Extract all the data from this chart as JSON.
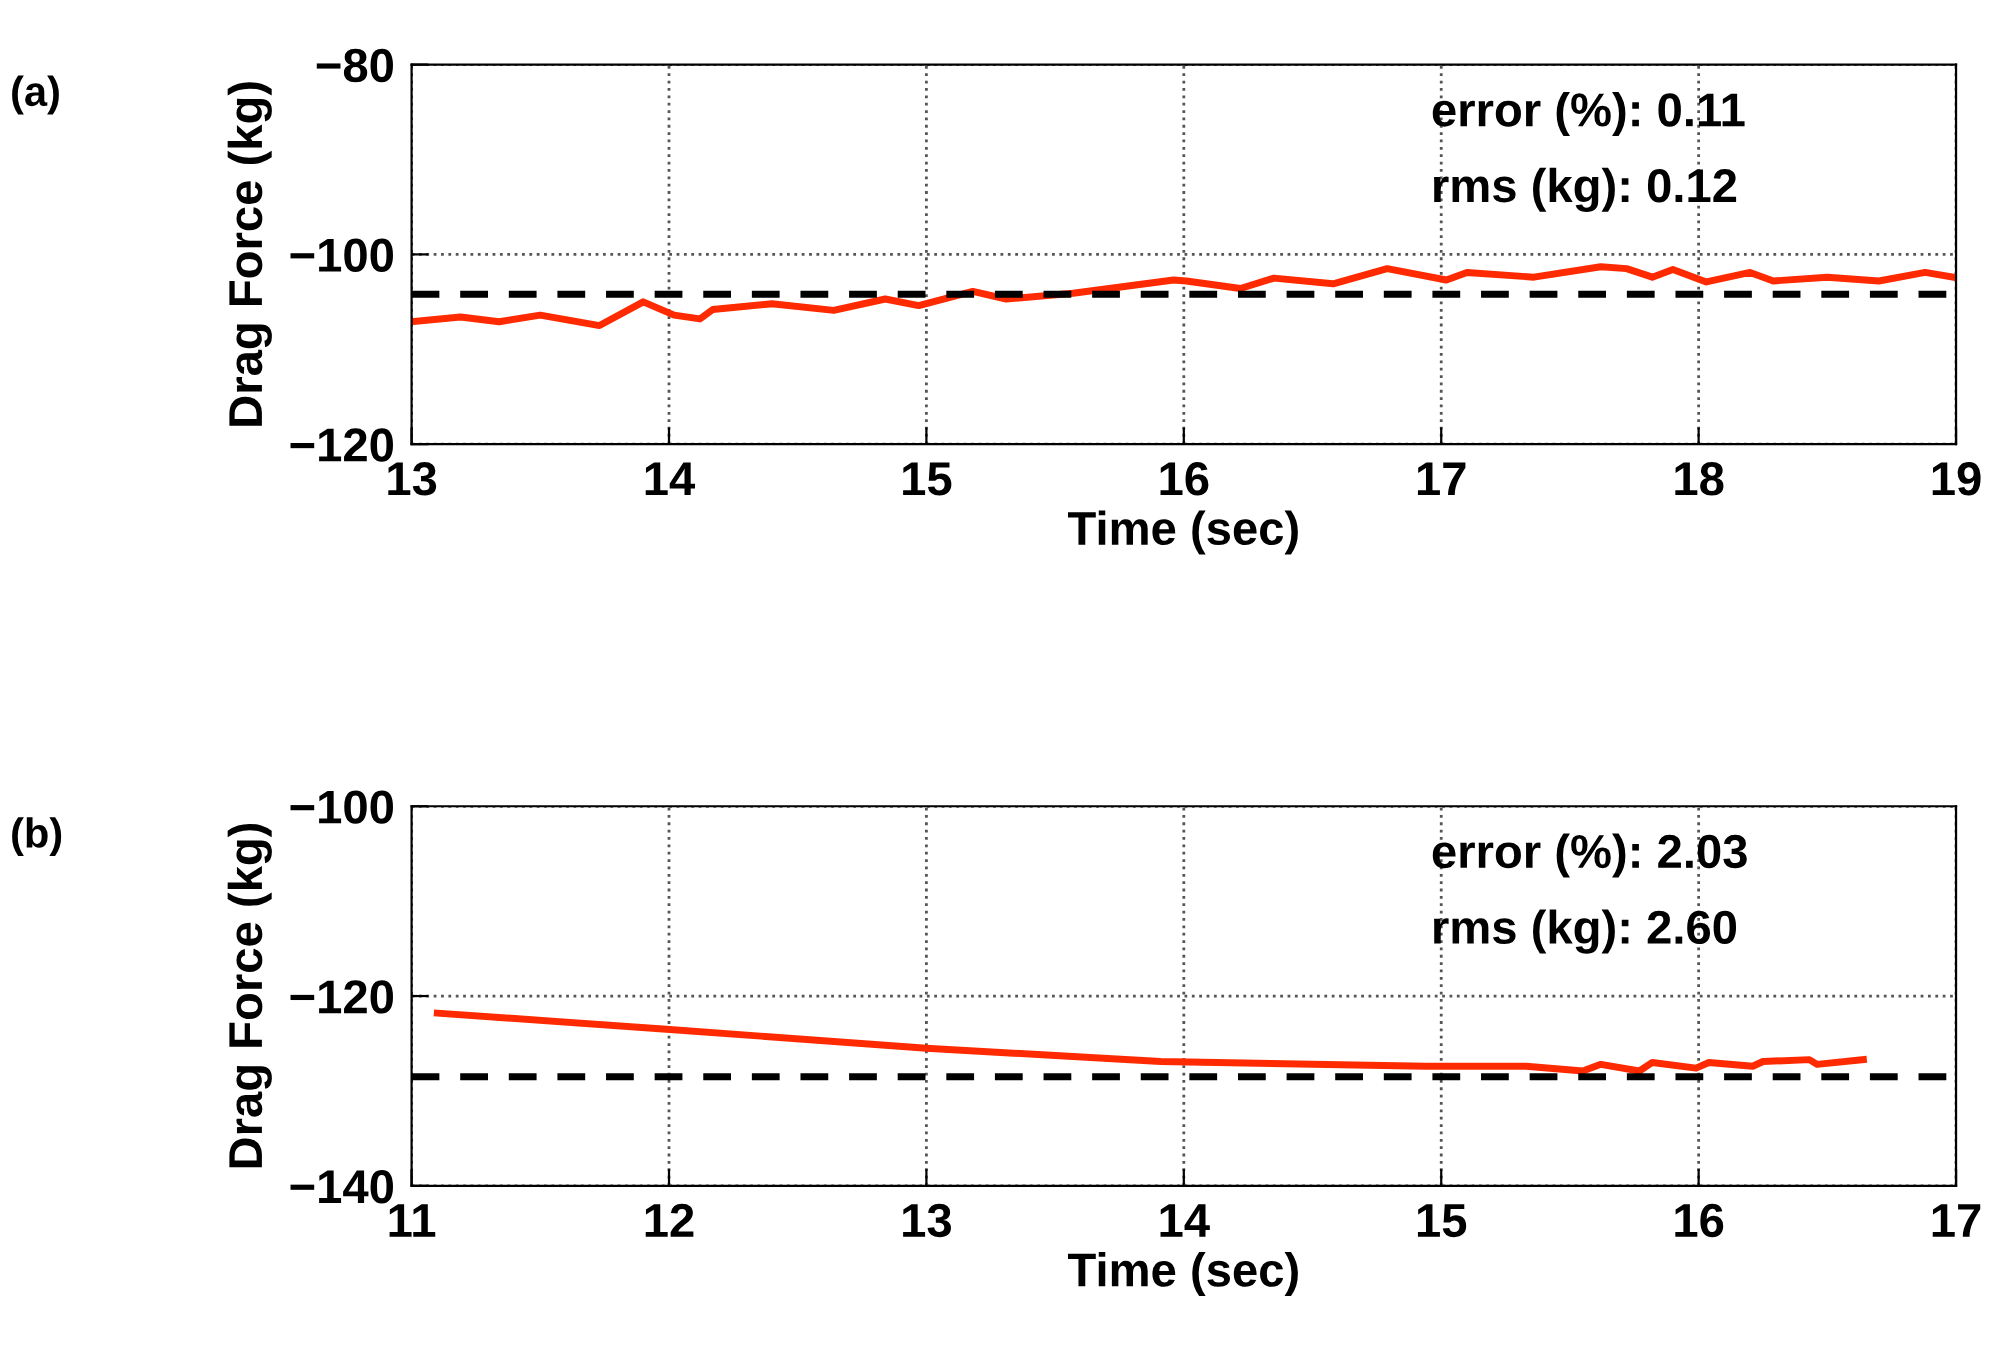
{
  "chart_data": [
    {
      "type": "line",
      "title": "(a)",
      "xlabel": "Time (sec)",
      "ylabel": "Drag Force (kg)",
      "annotations": [
        "error (%): 0.11",
        "rms (kg): 0.12"
      ],
      "series": [
        {
          "color": "#ff2a00",
          "x": [
            13.0,
            13.19,
            13.34,
            13.5,
            13.73,
            13.9,
            14.02,
            14.12,
            14.17,
            14.4,
            14.64,
            14.84,
            14.97,
            15.18,
            15.31,
            15.57,
            15.96,
            16.01,
            16.22,
            16.35,
            16.58,
            16.79,
            17.02,
            17.1,
            17.36,
            17.62,
            17.72,
            17.82,
            17.9,
            18.03,
            18.2,
            18.29,
            18.5,
            18.7,
            18.88,
            18.99
          ],
          "values": [
            -107.1,
            -106.6,
            -107.1,
            -106.4,
            -107.5,
            -105.0,
            -106.4,
            -106.8,
            -105.8,
            -105.2,
            -105.9,
            -104.7,
            -105.4,
            -103.9,
            -104.7,
            -104.1,
            -102.7,
            -102.8,
            -103.6,
            -102.5,
            -103.1,
            -101.5,
            -102.7,
            -101.9,
            -102.4,
            -101.3,
            -101.5,
            -102.4,
            -101.6,
            -102.9,
            -101.9,
            -102.8,
            -102.4,
            -102.8,
            -101.9,
            -102.4
          ]
        }
      ],
      "ref_lines": [
        {
          "axis": "y",
          "value": -104.2,
          "color": "#000000",
          "line_style": "dashed"
        }
      ],
      "xlim": [
        13,
        19
      ],
      "xticks": [
        13,
        14,
        15,
        16,
        17,
        18,
        19
      ],
      "ylim": [
        -120,
        -80
      ],
      "yticks": [
        {
          "value": -120,
          "label": "−120"
        },
        {
          "value": -100,
          "label": "−100"
        },
        {
          "value": -80,
          "label": "−80"
        }
      ],
      "grid": true,
      "line_style": "solid",
      "marker": "none"
    },
    {
      "type": "line",
      "title": "(b)",
      "xlabel": "Time (sec)",
      "ylabel": "Drag Force (kg)",
      "annotations": [
        "error (%): 2.03",
        "rms (kg): 2.60"
      ],
      "series": [
        {
          "color": "#ff2a00",
          "x": [
            11.1,
            11.99,
            13.0,
            13.91,
            14.94,
            15.33,
            15.55,
            15.62,
            15.77,
            15.82,
            15.99,
            16.04,
            16.21,
            16.25,
            16.43,
            16.46,
            16.64
          ],
          "values": [
            -121.8,
            -123.5,
            -125.5,
            -126.9,
            -127.4,
            -127.4,
            -127.9,
            -127.2,
            -127.9,
            -127.0,
            -127.6,
            -127.0,
            -127.4,
            -126.9,
            -126.7,
            -127.2,
            -126.7
          ]
        }
      ],
      "ref_lines": [
        {
          "axis": "y",
          "value": -128.5,
          "color": "#000000",
          "line_style": "dashed"
        }
      ],
      "xlim": [
        11,
        17
      ],
      "xticks": [
        11,
        12,
        13,
        14,
        15,
        16,
        17
      ],
      "ylim": [
        -140,
        -100
      ],
      "yticks": [
        {
          "value": -140,
          "label": "−140"
        },
        {
          "value": -120,
          "label": "−120"
        },
        {
          "value": -100,
          "label": "−100"
        }
      ],
      "grid": true,
      "line_style": "solid",
      "marker": "none"
    }
  ]
}
